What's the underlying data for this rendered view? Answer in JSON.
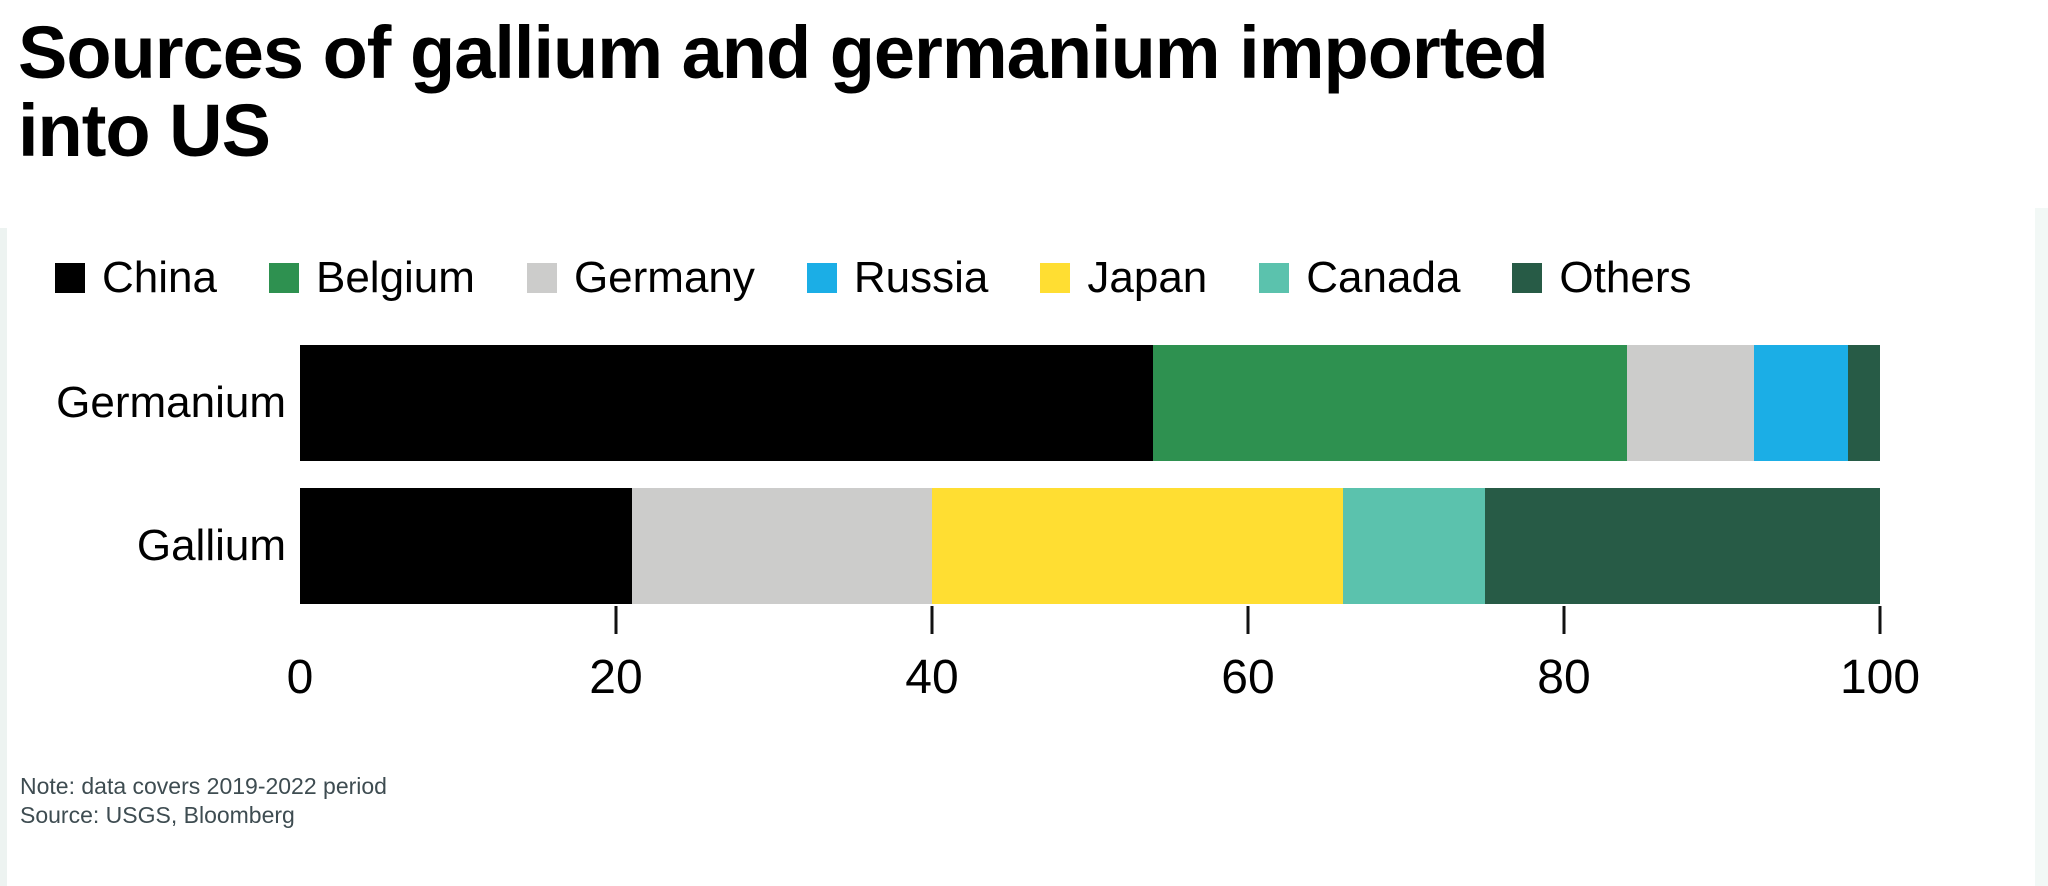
{
  "page": {
    "title_line1": "Sources of gallium and germanium imported",
    "title_line2": "into US",
    "note_line1": "Note: data covers 2019-2022 period",
    "note_line2": "Source: USGS, Bloomberg"
  },
  "colors": {
    "china": "#000000",
    "belgium": "#2E9150",
    "germany": "#CCCCCB",
    "russia": "#1BAEE6",
    "japan": "#FFDE32",
    "canada": "#5BC2AD",
    "others": "#275B46",
    "note_text": "#3E4C51",
    "edge_strip_left": "#EDF3F1",
    "edge_strip_right": "#F2F8F6"
  },
  "chart_data": {
    "type": "bar",
    "orientation": "horizontal-stacked",
    "title": "Sources of gallium and germanium imported into US",
    "categories": [
      "Germanium",
      "Gallium"
    ],
    "series": [
      {
        "name": "China",
        "color": "#000000",
        "values": [
          54,
          21
        ]
      },
      {
        "name": "Belgium",
        "color": "#2E9150",
        "values": [
          30,
          0
        ]
      },
      {
        "name": "Germany",
        "color": "#CCCCCB",
        "values": [
          8,
          19
        ]
      },
      {
        "name": "Russia",
        "color": "#1BAEE6",
        "values": [
          6,
          0
        ]
      },
      {
        "name": "Japan",
        "color": "#FFDE32",
        "values": [
          0,
          26
        ]
      },
      {
        "name": "Canada",
        "color": "#5BC2AD",
        "values": [
          0,
          9
        ]
      },
      {
        "name": "Others",
        "color": "#275B46",
        "values": [
          2,
          25
        ]
      }
    ],
    "x_ticks": [
      0,
      20,
      40,
      60,
      80,
      100
    ],
    "xlim": [
      0,
      100
    ],
    "legend_position": "top",
    "grid": false,
    "note": "Note: data covers 2019-2022 period",
    "source": "Source: USGS, Bloomberg"
  }
}
